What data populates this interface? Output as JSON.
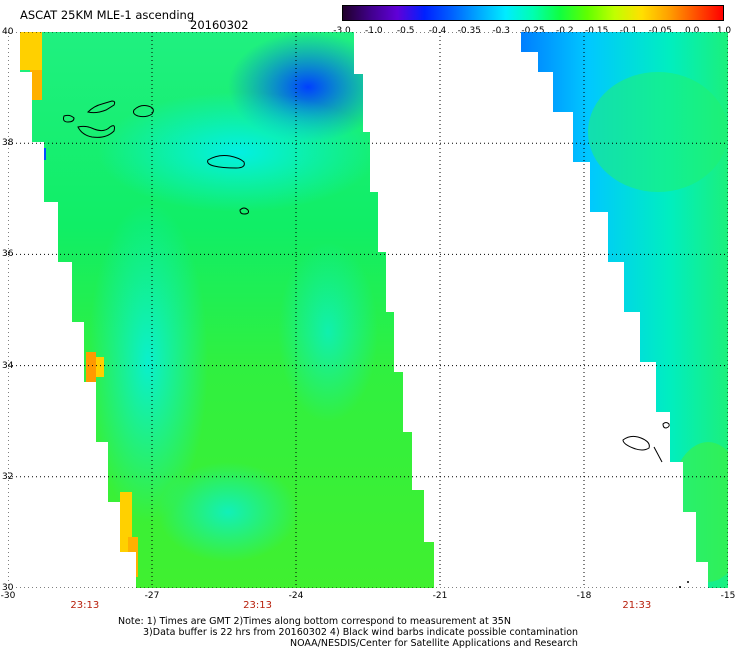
{
  "header": {
    "title": "ASCAT 25KM MLE-1 ascending",
    "date": "20160302"
  },
  "colorbar": {
    "labels": [
      "-3.0",
      "-1.0",
      "-0.5",
      "-0.4",
      "-0.35",
      "-0.3",
      "-0.25",
      "-0.2",
      "-0.15",
      "-0.1",
      "-0.05",
      "0.0",
      "1.0"
    ],
    "colors": [
      "#20002a",
      "#40008a",
      "#6000d8",
      "#0020ff",
      "#0060ff",
      "#00a8ff",
      "#00ecff",
      "#00ffb0",
      "#10ff40",
      "#60ff00",
      "#c0ff00",
      "#ffe000",
      "#ffa000",
      "#ff5000",
      "#ff0000"
    ]
  },
  "map": {
    "lon_range": [
      -30,
      -15
    ],
    "lat_range": [
      30,
      40
    ],
    "x_ticks": [
      "-30",
      "-27",
      "-24",
      "-21",
      "-18",
      "-15"
    ],
    "y_ticks": [
      "40",
      "38",
      "36",
      "34",
      "32",
      "30"
    ],
    "swath_times": [
      "23:13",
      "23:13",
      "21:33"
    ],
    "colors": {
      "background": "#ffffff",
      "low": "#0050ff",
      "mid": "#00eedd",
      "high": "#10ff40",
      "peak": "#ffd000",
      "time_label": "#b8200c"
    }
  },
  "notes": {
    "line1": "Note: 1) Times are GMT 2)Times along bottom correspond to measurement at 35N",
    "line2": "3)Data buffer is 22 hrs from 20160302 4) Black wind barbs indicate possible contamination",
    "line3": "NOAA/NESDIS/Center for Satellite Applications and Research"
  }
}
